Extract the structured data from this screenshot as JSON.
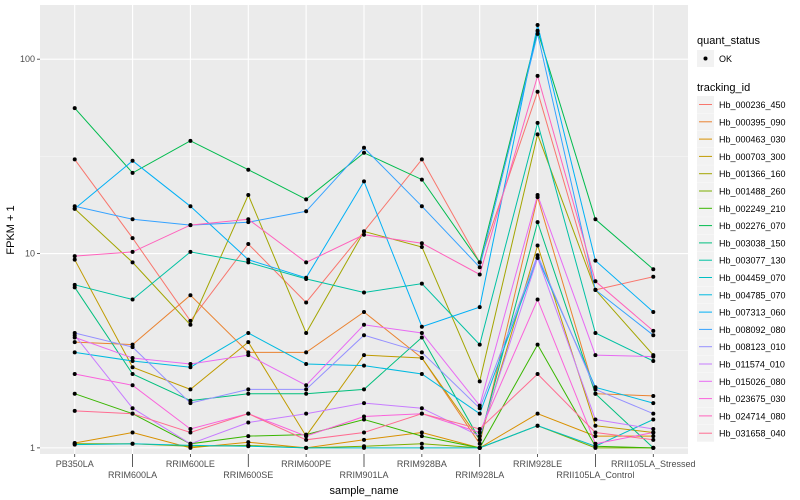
{
  "chart_data": {
    "type": "line",
    "xlabel": "sample_name",
    "ylabel": "FPKM + 1",
    "y_scale": "log10",
    "ylim": [
      0.93,
      190
    ],
    "y_ticks": [
      "1",
      "10",
      "100"
    ],
    "grid": true,
    "legend_position": "right",
    "categories": [
      "PB350LA",
      "RRIM600LA",
      "RRIM600LE",
      "RRIM600SE",
      "RRIM600PE",
      "RRIM901LA",
      "RRIM928BA",
      "RRIM928LA",
      "RRIM928LE",
      "RRII105LA_Control",
      "RRII105LA_Stressed"
    ],
    "shape_legend": {
      "title": "quant_status",
      "entries": [
        "OK"
      ]
    },
    "color_legend_title": "tracking_id",
    "series": [
      {
        "name": "Hb_000236_450",
        "color": "#F8766D",
        "values": [
          30.5,
          12,
          4.5,
          11.2,
          5.6,
          13,
          30.5,
          9.0,
          68,
          6.5,
          7.6
        ]
      },
      {
        "name": "Hb_000395_090",
        "color": "#EA8331",
        "values": [
          3.5,
          3.4,
          6.1,
          3.1,
          3.1,
          5.0,
          2.9,
          1.05,
          19.5,
          1.9,
          1.85
        ]
      },
      {
        "name": "Hb_000463_030",
        "color": "#D89000",
        "values": [
          1.06,
          1.2,
          1.0,
          1.07,
          1.0,
          1.1,
          1.2,
          1.0,
          1.5,
          1.15,
          1.15
        ]
      },
      {
        "name": "Hb_000703_300",
        "color": "#C09B00",
        "values": [
          9.3,
          2.6,
          2.0,
          3.5,
          1.15,
          3.0,
          2.9,
          1.1,
          11,
          1.3,
          1.2
        ]
      },
      {
        "name": "Hb_001366_160",
        "color": "#A3A500",
        "values": [
          17,
          9,
          4.3,
          20,
          3.9,
          13,
          10.8,
          2.2,
          41,
          6.5,
          3.0
        ]
      },
      {
        "name": "Hb_001488_260",
        "color": "#7CAE00",
        "values": [
          1.05,
          1.05,
          1.02,
          1.03,
          1.0,
          1.02,
          1.05,
          1.0,
          1.3,
          1.0,
          1.0
        ]
      },
      {
        "name": "Hb_002249_210",
        "color": "#39B600",
        "values": [
          1.9,
          1.5,
          1.05,
          1.15,
          1.17,
          1.4,
          1.15,
          1.0,
          3.4,
          1.02,
          1.0
        ]
      },
      {
        "name": "Hb_002276_070",
        "color": "#00BB4E",
        "values": [
          56,
          26,
          38,
          27,
          19,
          33,
          24,
          9.0,
          140,
          15,
          8.3
        ]
      },
      {
        "name": "Hb_003038_150",
        "color": "#00BF7D",
        "values": [
          6.7,
          2.4,
          1.75,
          1.9,
          1.9,
          2.0,
          3.7,
          1.1,
          14.5,
          1.9,
          1.0
        ]
      },
      {
        "name": "Hb_003077_130",
        "color": "#00C1A3",
        "values": [
          6.9,
          5.8,
          10.2,
          9.0,
          7.4,
          6.3,
          7.0,
          3.4,
          47,
          3.9,
          2.8
        ]
      },
      {
        "name": "Hb_004459_070",
        "color": "#00BFC4",
        "values": [
          1.04,
          1.05,
          1.03,
          1.02,
          1.0,
          1.0,
          1.0,
          1.0,
          1.3,
          1.02,
          1.4
        ]
      },
      {
        "name": "Hb_004785_070",
        "color": "#00BAE0",
        "values": [
          3.1,
          2.8,
          2.6,
          3.9,
          2.7,
          2.65,
          2.4,
          1.5,
          9.5,
          2.05,
          1.7
        ]
      },
      {
        "name": "Hb_007313_060",
        "color": "#00B0F6",
        "values": [
          17,
          30,
          17.5,
          9.3,
          7.5,
          23.5,
          4.2,
          5.3,
          150,
          9.2,
          5.0
        ]
      },
      {
        "name": "Hb_008092_080",
        "color": "#35A2FF",
        "values": [
          17.5,
          15,
          14,
          14.5,
          16.5,
          35,
          17.5,
          8.5,
          135,
          6.5,
          3.8
        ]
      },
      {
        "name": "Hb_008123_010",
        "color": "#9590FF",
        "values": [
          3.9,
          3.3,
          1.7,
          2.0,
          2.0,
          3.8,
          3.1,
          1.6,
          9.8,
          2.0,
          1.5
        ]
      },
      {
        "name": "Hb_011574_010",
        "color": "#C77CFF",
        "values": [
          3.8,
          1.6,
          1.05,
          1.35,
          1.5,
          1.7,
          1.6,
          1.15,
          9.5,
          1.4,
          1.25
        ]
      },
      {
        "name": "Hb_015026_080",
        "color": "#E76BF3",
        "values": [
          3.7,
          2.9,
          2.7,
          3.0,
          2.1,
          4.3,
          3.9,
          1.65,
          20,
          3.0,
          2.95
        ]
      },
      {
        "name": "Hb_023675_030",
        "color": "#FA62DB",
        "values": [
          2.4,
          2.1,
          1.25,
          1.5,
          1.15,
          1.45,
          1.5,
          1.2,
          5.8,
          1.05,
          1.2
        ]
      },
      {
        "name": "Hb_024714_080",
        "color": "#FF62BC",
        "values": [
          9.7,
          10.2,
          14,
          15,
          9.0,
          12.5,
          11.3,
          7.8,
          82,
          7.2,
          4.0
        ]
      },
      {
        "name": "Hb_031658_040",
        "color": "#FF6C91",
        "values": [
          1.55,
          1.5,
          1.2,
          1.5,
          1.1,
          1.2,
          1.5,
          1.25,
          2.4,
          1.2,
          1.1
        ]
      }
    ]
  }
}
